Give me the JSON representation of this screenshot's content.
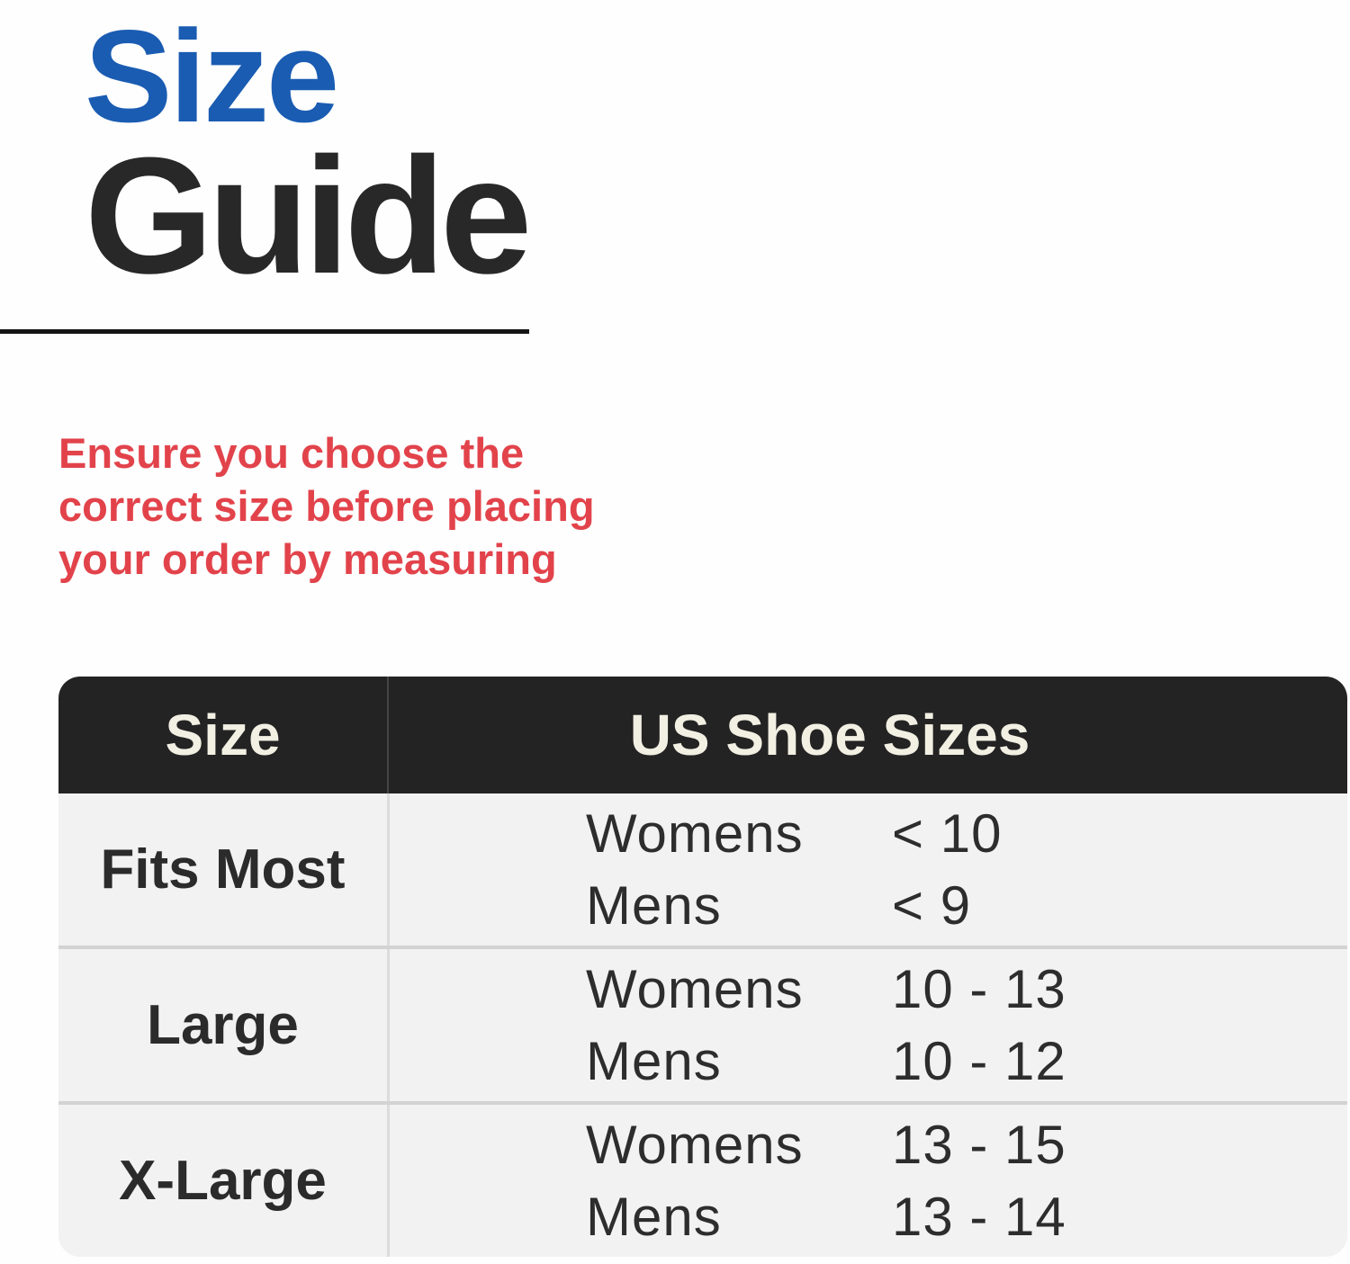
{
  "title": {
    "word1": "Size",
    "word2": "Guide",
    "word1_color": "#1a5cb2",
    "word2_color": "#282828"
  },
  "note": {
    "color": "#e2434b",
    "lines": [
      "Ensure you choose the",
      "correct size before placing",
      "your order by measuring"
    ]
  },
  "table": {
    "headers": {
      "size": "Size",
      "us_shoe_sizes": "US Shoe Sizes"
    },
    "rows": [
      {
        "size": "Fits Most",
        "entries": [
          {
            "label": "Womens",
            "value": "< 10"
          },
          {
            "label": "Mens",
            "value": "< 9"
          }
        ]
      },
      {
        "size": "Large",
        "entries": [
          {
            "label": "Womens",
            "value": "10 - 13"
          },
          {
            "label": "Mens",
            "value": "10 - 12"
          }
        ]
      },
      {
        "size": "X-Large",
        "entries": [
          {
            "label": "Womens",
            "value": "13 - 15"
          },
          {
            "label": "Mens",
            "value": "13 - 14"
          }
        ]
      }
    ],
    "colors": {
      "header_bg": "#232323",
      "header_text": "#f2efe3",
      "row_bg": "#f2f2f2",
      "divider": "#d3d3d3",
      "row_text": "#2d2d2d"
    }
  }
}
